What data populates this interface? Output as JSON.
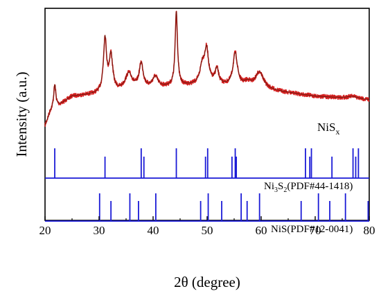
{
  "chart_data": {
    "type": "line",
    "title": "",
    "xlabel": "2θ (degree)",
    "ylabel": "Intensity (a.u.)",
    "xlim": [
      20,
      80
    ],
    "x_ticks": [
      20,
      30,
      40,
      50,
      60,
      70,
      80
    ],
    "y_ticks_shown": false,
    "grid": false,
    "legend": "none",
    "sample_label": "NiS_x",
    "sample_label_main": "NiS",
    "sample_label_sub": "x",
    "colors": {
      "pattern": "#d42020",
      "pattern_dark": "#6e1a10",
      "reference": "#1a1ad6",
      "axis": "#000000"
    },
    "pattern": {
      "name": "NiS_x",
      "baseline": [
        [
          20,
          0.05
        ],
        [
          21,
          0.17
        ],
        [
          25,
          0.3
        ],
        [
          30,
          0.32
        ],
        [
          40,
          0.37
        ],
        [
          50,
          0.4
        ],
        [
          60,
          0.36
        ],
        [
          70,
          0.3
        ],
        [
          80,
          0.27
        ]
      ],
      "peaks": [
        {
          "x": 21.8,
          "h": 0.2,
          "w": 0.25
        },
        {
          "x": 31.1,
          "h": 0.45,
          "w": 0.35
        },
        {
          "x": 32.2,
          "h": 0.3,
          "w": 0.4
        },
        {
          "x": 35.5,
          "h": 0.14,
          "w": 0.8
        },
        {
          "x": 37.8,
          "h": 0.21,
          "w": 0.45
        },
        {
          "x": 40.4,
          "h": 0.09,
          "w": 0.6
        },
        {
          "x": 44.3,
          "h": 0.63,
          "w": 0.26
        },
        {
          "x": 49.1,
          "h": 0.15,
          "w": 0.5
        },
        {
          "x": 49.9,
          "h": 0.28,
          "w": 0.45
        },
        {
          "x": 51.8,
          "h": 0.13,
          "w": 0.4
        },
        {
          "x": 55.2,
          "h": 0.28,
          "w": 0.5
        },
        {
          "x": 57.5,
          "h": 0.04,
          "w": 0.8
        },
        {
          "x": 59.7,
          "h": 0.14,
          "w": 0.9
        },
        {
          "x": 76.9,
          "h": 0.02,
          "w": 1.2
        }
      ]
    },
    "references": [
      {
        "label": "Ni_3S_2(PDF#44-1418)",
        "label_parts": [
          "Ni",
          "3",
          "S",
          "2",
          "(PDF#44-1418)"
        ],
        "lines": [
          21.8,
          31.1,
          37.8,
          38.3,
          44.3,
          49.7,
          50.1,
          54.6,
          55.2,
          55.4,
          68.2,
          69.0,
          69.3,
          73.1,
          77.0,
          77.5,
          78.0
        ]
      },
      {
        "label": "NiS(PDF#12-0041)",
        "lines": [
          30.1,
          32.2,
          35.7,
          37.3,
          40.5,
          48.8,
          50.2,
          52.7,
          56.3,
          57.4,
          59.7,
          67.4,
          70.6,
          72.7,
          75.6,
          79.8
        ]
      }
    ]
  }
}
